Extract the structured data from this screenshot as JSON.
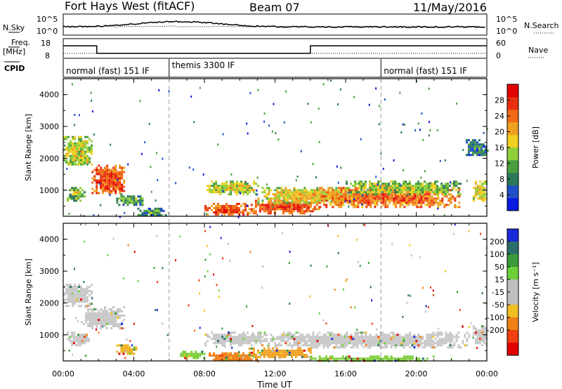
{
  "header": {
    "station": "Fort Hays West (fitACF)",
    "beam": "Beam 07",
    "date": "11/May/2016"
  },
  "top_strip": {
    "nsky_label": "N.Sky",
    "nsearch_label": "N.Search",
    "freq_label_1": "Freq.",
    "freq_label_2": "[MHz]",
    "nave_label": "Nave",
    "cpid_label": "CPID",
    "left_ticks_nsky": [
      "10^5",
      "10^0"
    ],
    "right_ticks_nsky": [
      "10^5",
      "10^0"
    ],
    "left_ticks_freq": [
      "18",
      "8"
    ],
    "right_ticks_nave": [
      "60",
      "0"
    ]
  },
  "modes": [
    {
      "label": "normal (fast) 151 IF",
      "start_hour": 0
    },
    {
      "label": "themis 3300 IF",
      "start_hour": 6
    },
    {
      "label": "normal (fast) 151 IF",
      "start_hour": 18
    }
  ],
  "chart_data": [
    {
      "type": "heatmap",
      "name": "power",
      "xlabel": "",
      "ylabel": "Slant Range [km]",
      "x_ticks": [
        "00:00",
        "04:00",
        "08:00",
        "12:00",
        "16:00",
        "20:00",
        "00:00"
      ],
      "y_ticks": [
        "1000",
        "2000",
        "3000",
        "4000"
      ],
      "xlim_hours": [
        0,
        24
      ],
      "ylim_km": [
        180,
        4500
      ],
      "colorbar_label": "Power [dB]",
      "colorbar_ticks": [
        "4",
        "8",
        "12",
        "16",
        "20",
        "24",
        "28"
      ],
      "colorbar_colors": [
        "#0a1ae0",
        "#1f4fc8",
        "#2c7a5a",
        "#4a9e3f",
        "#8fcf3a",
        "#f0d020",
        "#f0a020",
        "#f06a18",
        "#e83010",
        "#e00000"
      ],
      "colorbar_range": [
        0,
        32
      ],
      "regions": [
        {
          "x": [
            0.0,
            1.6
          ],
          "y": [
            1800,
            2700
          ],
          "level": 0.55
        },
        {
          "x": [
            1.6,
            3.5
          ],
          "y": [
            900,
            1800
          ],
          "level": 0.85
        },
        {
          "x": [
            0.2,
            1.2
          ],
          "y": [
            700,
            1100
          ],
          "level": 0.45
        },
        {
          "x": [
            3.0,
            4.5
          ],
          "y": [
            550,
            900
          ],
          "level": 0.4
        },
        {
          "x": [
            4.2,
            5.8
          ],
          "y": [
            200,
            450
          ],
          "level": 0.35
        },
        {
          "x": [
            8.0,
            10.5
          ],
          "y": [
            250,
            600
          ],
          "level": 0.85
        },
        {
          "x": [
            8.0,
            11.0
          ],
          "y": [
            900,
            1300
          ],
          "level": 0.55
        },
        {
          "x": [
            10.5,
            14.5
          ],
          "y": [
            300,
            700
          ],
          "level": 0.85
        },
        {
          "x": [
            11.0,
            17.0
          ],
          "y": [
            600,
            1100
          ],
          "level": 0.6
        },
        {
          "x": [
            14.5,
            22.5
          ],
          "y": [
            500,
            1100
          ],
          "level": 0.8
        },
        {
          "x": [
            16.0,
            22.5
          ],
          "y": [
            900,
            1300
          ],
          "level": 0.5
        },
        {
          "x": [
            23.2,
            24.0
          ],
          "y": [
            700,
            1300
          ],
          "level": 0.6
        },
        {
          "x": [
            22.8,
            24.0
          ],
          "y": [
            2100,
            2600
          ],
          "level": 0.3
        }
      ]
    },
    {
      "type": "heatmap",
      "name": "velocity",
      "xlabel": "Time UT",
      "ylabel": "Slant Range [km]",
      "x_ticks": [
        "00:00",
        "04:00",
        "08:00",
        "12:00",
        "16:00",
        "20:00",
        "00:00"
      ],
      "y_ticks": [
        "1000",
        "2000",
        "3000",
        "4000"
      ],
      "xlim_hours": [
        0,
        24
      ],
      "ylim_km": [
        180,
        4500
      ],
      "colorbar_label": "Velocity [m s⁻¹]",
      "colorbar_ticks": [
        "200",
        "100",
        "50",
        "15",
        "-15",
        "-50",
        "-100",
        "-200"
      ],
      "colorbar_colors": [
        "#1a2ad8",
        "#2a6e6a",
        "#3a9a3a",
        "#6ccf3a",
        "#bfbfbf",
        "#bfbfbf",
        "#f0c020",
        "#f08018",
        "#f04010",
        "#e00000"
      ],
      "regions": [
        {
          "x": [
            0.0,
            1.6
          ],
          "y": [
            1900,
            2600
          ],
          "color": "#c8c8c8"
        },
        {
          "x": [
            1.0,
            3.5
          ],
          "y": [
            1200,
            1900
          ],
          "color": "#c8c8c8"
        },
        {
          "x": [
            0.2,
            1.5
          ],
          "y": [
            700,
            1100
          ],
          "color": "#c8c8c8"
        },
        {
          "x": [
            3.0,
            4.2
          ],
          "y": [
            400,
            700
          ],
          "color": "#f0b020"
        },
        {
          "x": [
            8.0,
            11.0
          ],
          "y": [
            200,
            450
          ],
          "color": "#f08018"
        },
        {
          "x": [
            6.5,
            8.0
          ],
          "y": [
            300,
            500
          ],
          "color": "#7ccf3a"
        },
        {
          "x": [
            8.0,
            11.5
          ],
          "y": [
            700,
            1100
          ],
          "color": "#c8c8c8"
        },
        {
          "x": [
            11.0,
            23.0
          ],
          "y": [
            600,
            1100
          ],
          "color": "#c8c8c8"
        },
        {
          "x": [
            10.5,
            14.0
          ],
          "y": [
            300,
            600
          ],
          "color": "#f0a020"
        },
        {
          "x": [
            14.0,
            21.0
          ],
          "y": [
            200,
            350
          ],
          "color": "#7ccf3a"
        },
        {
          "x": [
            23.2,
            24.0
          ],
          "y": [
            700,
            1300
          ],
          "color": "#c8c8c8"
        }
      ]
    }
  ],
  "freq_profile": {
    "description_units": "MHz",
    "segments": [
      {
        "x": [
          0,
          1.9
        ],
        "freq": 15
      },
      {
        "x": [
          1.9,
          14
        ],
        "freq": 10.5
      },
      {
        "x": [
          14,
          24
        ],
        "freq": 15
      }
    ]
  }
}
